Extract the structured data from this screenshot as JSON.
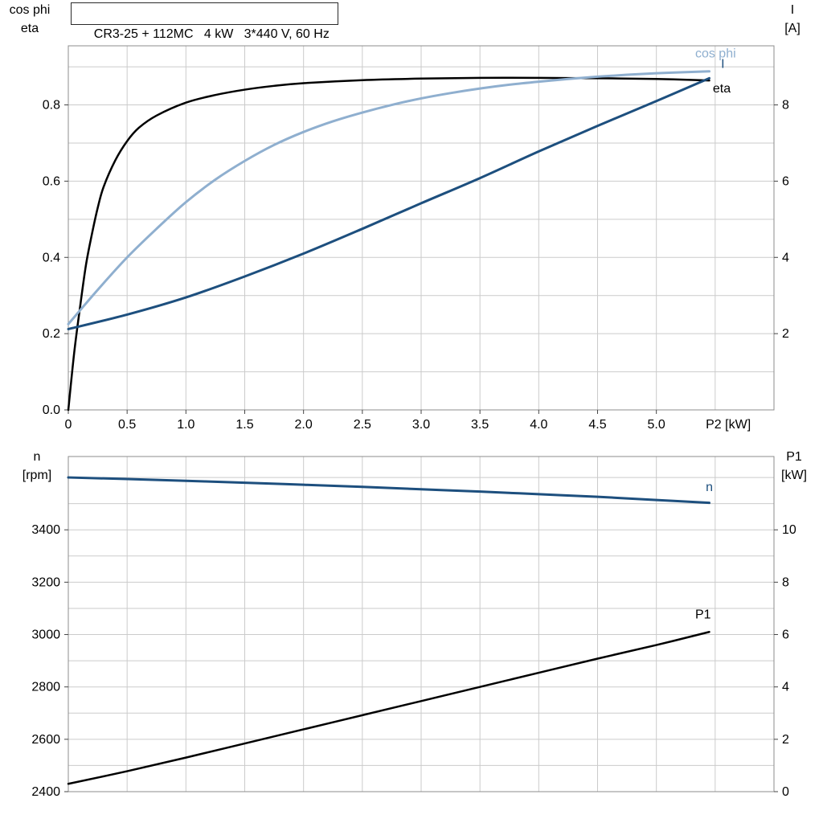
{
  "title_box": {
    "text": "CR3-25 + 112MC   4 kW   3*440 V, 60 Hz"
  },
  "colors": {
    "black": "#000000",
    "light_blue": "#8fafcf",
    "dark_blue": "#1d4f7e",
    "grid": "#cbcbcb",
    "axis_border": "#8c8c8c",
    "tick": "#444444",
    "background": "#ffffff"
  },
  "axis_corner_labels": {
    "top_left_line1": "cos phi",
    "top_left_line2": "eta",
    "top_right_line1": "I",
    "top_right_line2": "[A]",
    "bottom_left_line1": "n",
    "bottom_left_line2": "[rpm]",
    "bottom_right_line1": "P1",
    "bottom_right_line2": "[kW]"
  },
  "chart_data": [
    {
      "type": "line",
      "title": "CR3-25 + 112MC   4 kW   3*440 V, 60 Hz",
      "xlabel": "P2 [kW]",
      "xlabel_x": 5.42,
      "ylabel_left": "cos phi / eta",
      "ylabel_right": "I [A]",
      "xlim": [
        0,
        6
      ],
      "xgrid_step": 0.5,
      "xticks": [
        0,
        0.5,
        1,
        1.5,
        2,
        2.5,
        3,
        3.5,
        4,
        4.5,
        5
      ],
      "xtick_labels": [
        "0",
        "0.5",
        "1.0",
        "1.5",
        "2.0",
        "2.5",
        "3.0",
        "3.5",
        "4.0",
        "4.5",
        "5.0"
      ],
      "ylim_left": [
        0,
        0.955
      ],
      "ygrid_step_left": 0.1,
      "yticks_left": [
        0,
        0.2,
        0.4,
        0.6,
        0.8
      ],
      "ytick_labels_left": [
        "0.0",
        "0.2",
        "0.4",
        "0.6",
        "0.8"
      ],
      "ylim_right": [
        0,
        9.55
      ],
      "yticks_right": [
        2,
        4,
        6,
        8
      ],
      "ytick_labels_right": [
        "2",
        "4",
        "6",
        "8"
      ],
      "legend_position": "labels-at-curve-end",
      "grid": true,
      "series": [
        {
          "name": "eta",
          "axis": "left",
          "color": "black",
          "width": 2.5,
          "x": [
            0,
            0.05,
            0.1,
            0.15,
            0.2,
            0.25,
            0.3,
            0.4,
            0.5,
            0.6,
            0.75,
            1.0,
            1.25,
            1.5,
            1.75,
            2.0,
            2.5,
            3.0,
            3.5,
            4.0,
            4.5,
            5.0,
            5.45
          ],
          "y": [
            0,
            0.15,
            0.27,
            0.38,
            0.46,
            0.53,
            0.585,
            0.655,
            0.705,
            0.74,
            0.772,
            0.806,
            0.826,
            0.84,
            0.85,
            0.857,
            0.865,
            0.869,
            0.871,
            0.871,
            0.87,
            0.868,
            0.864
          ]
        },
        {
          "name": "cos phi",
          "axis": "left",
          "color": "light_blue",
          "width": 3,
          "x": [
            0,
            0.25,
            0.5,
            0.75,
            1.0,
            1.25,
            1.5,
            1.75,
            2.0,
            2.25,
            2.5,
            2.75,
            3.0,
            3.25,
            3.5,
            3.75,
            4.0,
            4.25,
            4.5,
            4.75,
            5.0,
            5.25,
            5.45
          ],
          "y": [
            0.225,
            0.315,
            0.4,
            0.475,
            0.545,
            0.604,
            0.653,
            0.695,
            0.729,
            0.757,
            0.78,
            0.8,
            0.817,
            0.831,
            0.843,
            0.853,
            0.861,
            0.868,
            0.874,
            0.879,
            0.883,
            0.886,
            0.888
          ]
        },
        {
          "name": "I",
          "axis": "right",
          "color": "dark_blue",
          "width": 3,
          "x": [
            0,
            0.5,
            1.0,
            1.5,
            2.0,
            2.5,
            3.0,
            3.5,
            4.0,
            4.5,
            5.0,
            5.45
          ],
          "y": [
            2.12,
            2.5,
            2.95,
            3.5,
            4.1,
            4.75,
            5.42,
            6.08,
            6.78,
            7.45,
            8.1,
            8.7
          ]
        }
      ],
      "labels": [
        {
          "text": "cos phi",
          "x": 5.33,
          "y": 0.924,
          "axis": "left",
          "color": "light_blue"
        },
        {
          "text": "I",
          "x": 5.55,
          "y": 8.97,
          "axis": "right",
          "color": "dark_blue"
        },
        {
          "text": "eta",
          "x": 5.48,
          "y": 0.833,
          "axis": "left",
          "color": "black"
        }
      ]
    },
    {
      "type": "line",
      "title": "",
      "xlabel": "",
      "ylabel_left": "n [rpm]",
      "ylabel_right": "P1 [kW]",
      "xlim": [
        0,
        6
      ],
      "xgrid_step": 0.5,
      "xticks": [],
      "xtick_labels": [],
      "ylim_left": [
        2400,
        3680
      ],
      "ygrid_step_left": 100,
      "yticks_left": [
        2400,
        2600,
        2800,
        3000,
        3200,
        3400
      ],
      "ytick_labels_left": [
        "2400",
        "2600",
        "2800",
        "3000",
        "3200",
        "3400"
      ],
      "ylim_right": [
        0,
        12.8
      ],
      "yticks_right": [
        0,
        2,
        4,
        6,
        8,
        10
      ],
      "ytick_labels_right": [
        "0",
        "2",
        "4",
        "6",
        "8",
        "10"
      ],
      "legend_position": "labels-at-curve-end",
      "grid": true,
      "series": [
        {
          "name": "n",
          "axis": "left",
          "color": "dark_blue",
          "width": 3,
          "x": [
            0,
            0.5,
            1,
            1.5,
            2,
            2.5,
            3,
            3.5,
            4,
            4.5,
            5,
            5.45
          ],
          "y": [
            3600,
            3594,
            3587,
            3580,
            3572,
            3564,
            3555,
            3546,
            3536,
            3526,
            3514,
            3503
          ]
        },
        {
          "name": "P1",
          "axis": "right",
          "color": "black",
          "width": 2.5,
          "x": [
            0,
            0.5,
            1,
            1.5,
            2,
            2.5,
            3,
            3.5,
            4,
            4.5,
            5,
            5.45
          ],
          "y": [
            0.3,
            0.78,
            1.3,
            1.84,
            2.38,
            2.92,
            3.46,
            4.0,
            4.54,
            5.08,
            5.6,
            6.1
          ]
        }
      ],
      "labels": [
        {
          "text": "n",
          "x": 5.42,
          "y": 3548,
          "axis": "left",
          "color": "dark_blue"
        },
        {
          "text": "P1",
          "x": 5.33,
          "y": 6.62,
          "axis": "right",
          "color": "black"
        }
      ]
    }
  ]
}
